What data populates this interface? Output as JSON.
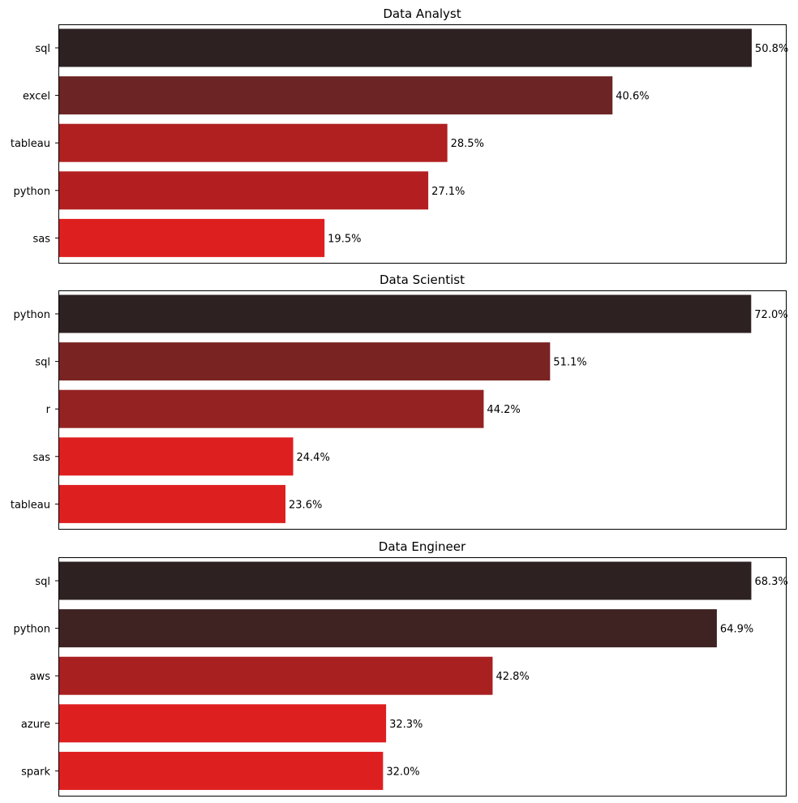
{
  "chart_data": [
    {
      "type": "bar",
      "orientation": "horizontal",
      "title": "Data Analyst",
      "categories": [
        "sql",
        "excel",
        "tableau",
        "python",
        "sas"
      ],
      "values": [
        50.8,
        40.6,
        28.5,
        27.1,
        19.5
      ],
      "labels": [
        "50.8%",
        "40.6%",
        "28.5%",
        "27.1%",
        "19.5%"
      ],
      "colors": [
        "#2d2221",
        "#6d2424",
        "#b02020",
        "#b31f20",
        "#de1f20"
      ],
      "xlabel": "",
      "ylabel": "",
      "xlim": [
        0,
        53.3
      ],
      "x_ticks_visible": false,
      "grid": false
    },
    {
      "type": "bar",
      "orientation": "horizontal",
      "title": "Data Scientist",
      "categories": [
        "python",
        "sql",
        "r",
        "sas",
        "tableau"
      ],
      "values": [
        72.0,
        51.1,
        44.2,
        24.4,
        23.6
      ],
      "labels": [
        "72.0%",
        "51.1%",
        "44.2%",
        "24.4%",
        "23.6%"
      ],
      "colors": [
        "#2d2221",
        "#7a2323",
        "#952222",
        "#de1f20",
        "#de1f20"
      ],
      "xlabel": "",
      "ylabel": "",
      "xlim": [
        0,
        75.6
      ],
      "x_ticks_visible": false,
      "grid": false
    },
    {
      "type": "bar",
      "orientation": "horizontal",
      "title": "Data Engineer",
      "categories": [
        "sql",
        "python",
        "aws",
        "azure",
        "spark"
      ],
      "values": [
        68.3,
        64.9,
        42.8,
        32.3,
        32.0
      ],
      "labels": [
        "68.3%",
        "64.9%",
        "42.8%",
        "32.3%",
        "32.0%"
      ],
      "colors": [
        "#2d2221",
        "#3f2323",
        "#a92021",
        "#de1f20",
        "#de1f20"
      ],
      "xlabel": "",
      "ylabel": "",
      "xlim": [
        0,
        71.7
      ],
      "x_ticks_visible": false,
      "grid": false
    }
  ]
}
